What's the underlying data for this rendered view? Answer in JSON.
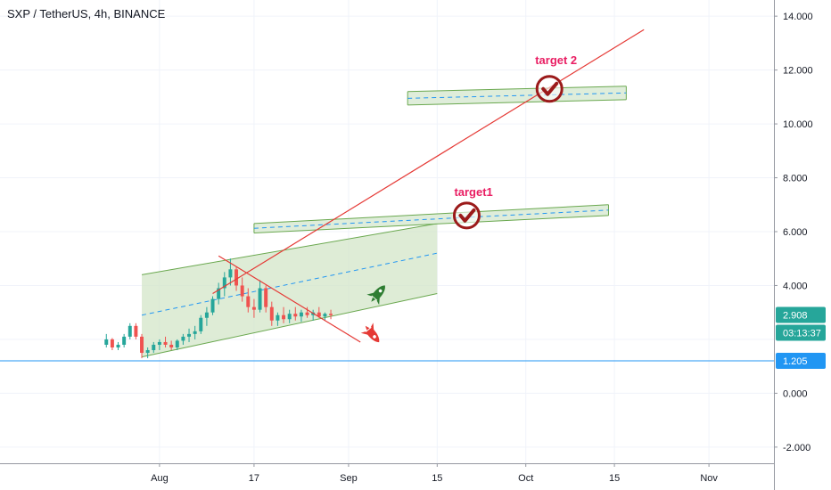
{
  "chart_data": {
    "type": "candlestick",
    "title": "SXP / TetherUS, 4h, BINANCE",
    "price_axis": {
      "ticks": [
        "14.000",
        "12.000",
        "10.000",
        "8.000",
        "6.000",
        "4.000",
        "2.000",
        "0.000",
        "-2.000"
      ],
      "tick_values": [
        14,
        12,
        10,
        8,
        6,
        4,
        2,
        0,
        -2
      ],
      "visible_ticks": [
        "14.000",
        "12.000",
        "10.000",
        "8.000",
        "6.000",
        "4.000",
        "0.000",
        "-2.000"
      ],
      "range": [
        -2.6,
        14.6
      ]
    },
    "time_axis": {
      "labels": [
        "Aug",
        "17",
        "Sep",
        "15",
        "Oct",
        "15",
        "Nov"
      ],
      "label_days": [
        31,
        47,
        63,
        78,
        93,
        108,
        124
      ],
      "range_days": [
        4,
        135
      ]
    },
    "current_price": {
      "value": 2.908,
      "label": "2.908",
      "color": "#26a69a"
    },
    "countdown": {
      "label": "03:13:37",
      "color": "#26a69a"
    },
    "horizontal_level": {
      "value": 1.205,
      "label": "1.205",
      "color": "#2196f3"
    },
    "candles_ohlc_by_day": [
      [
        22,
        1.8,
        2.2,
        1.7,
        2.0
      ],
      [
        23,
        2.0,
        2.05,
        1.6,
        1.7
      ],
      [
        24,
        1.7,
        1.9,
        1.6,
        1.8
      ],
      [
        25,
        1.8,
        2.2,
        1.7,
        2.1
      ],
      [
        26,
        2.1,
        2.6,
        2.0,
        2.5
      ],
      [
        27,
        2.5,
        2.6,
        2.0,
        2.1
      ],
      [
        28,
        2.1,
        2.2,
        1.3,
        1.5
      ],
      [
        29,
        1.5,
        1.7,
        1.3,
        1.6
      ],
      [
        30,
        1.6,
        1.9,
        1.5,
        1.8
      ],
      [
        31,
        1.8,
        2.0,
        1.6,
        1.9
      ],
      [
        32,
        1.9,
        2.1,
        1.7,
        1.8
      ],
      [
        33,
        1.8,
        1.95,
        1.6,
        1.7
      ],
      [
        34,
        1.7,
        2.0,
        1.6,
        1.95
      ],
      [
        35,
        1.95,
        2.2,
        1.8,
        2.1
      ],
      [
        36,
        2.1,
        2.4,
        1.9,
        2.2
      ],
      [
        37,
        2.2,
        2.5,
        2.0,
        2.3
      ],
      [
        38,
        2.3,
        2.9,
        2.2,
        2.8
      ],
      [
        39,
        2.8,
        3.2,
        2.5,
        3.0
      ],
      [
        40,
        3.0,
        3.6,
        2.9,
        3.5
      ],
      [
        41,
        3.5,
        4.1,
        3.3,
        3.9
      ],
      [
        42,
        3.9,
        4.5,
        3.6,
        4.3
      ],
      [
        43,
        4.3,
        5.0,
        4.0,
        4.6
      ],
      [
        44,
        4.6,
        4.7,
        3.8,
        4.0
      ],
      [
        45,
        4.0,
        4.3,
        3.4,
        3.6
      ],
      [
        46,
        3.6,
        3.9,
        3.0,
        3.2
      ],
      [
        47,
        3.2,
        3.5,
        2.8,
        3.1
      ],
      [
        48,
        3.1,
        4.2,
        3.0,
        3.9
      ],
      [
        49,
        3.9,
        4.0,
        3.0,
        3.2
      ],
      [
        50,
        3.2,
        3.4,
        2.5,
        2.7
      ],
      [
        51,
        2.7,
        3.0,
        2.5,
        2.9
      ],
      [
        52,
        2.9,
        3.2,
        2.6,
        2.75
      ],
      [
        53,
        2.75,
        3.1,
        2.6,
        2.95
      ],
      [
        54,
        2.95,
        3.2,
        2.7,
        2.85
      ],
      [
        55,
        2.85,
        3.1,
        2.65,
        3.0
      ],
      [
        56,
        3.0,
        3.2,
        2.8,
        2.9
      ],
      [
        57,
        2.9,
        3.1,
        2.7,
        3.0
      ],
      [
        58,
        3.0,
        3.2,
        2.8,
        2.85
      ],
      [
        59,
        2.85,
        3.0,
        2.7,
        2.95
      ],
      [
        60,
        2.95,
        3.1,
        2.75,
        2.9
      ]
    ],
    "annotations": [
      {
        "text": "target1",
        "color": "#e91e63"
      },
      {
        "text": "target 2",
        "color": "#e91e63"
      }
    ],
    "drawings": {
      "channel": {
        "fill": "#d3e6c8",
        "stroke": "#6aa84f",
        "upper": [
          [
            28,
            4.4
          ],
          [
            78,
            6.3
          ]
        ],
        "lower": [
          [
            28,
            1.35
          ],
          [
            78,
            3.7
          ]
        ],
        "mid": [
          [
            28,
            2.9
          ],
          [
            78,
            5.2
          ]
        ]
      },
      "zone_target1": {
        "upper": [
          [
            47,
            6.3
          ],
          [
            107,
            7.0
          ]
        ],
        "lower": [
          [
            47,
            5.95
          ],
          [
            107,
            6.6
          ]
        ]
      },
      "zone_target2": {
        "upper": [
          [
            73,
            11.2
          ],
          [
            110,
            11.4
          ]
        ],
        "lower": [
          [
            73,
            10.7
          ],
          [
            110,
            10.9
          ]
        ]
      },
      "trend_up": {
        "color": "#e53935",
        "points": [
          [
            40,
            3.7
          ],
          [
            113,
            13.5
          ]
        ]
      },
      "trend_down": {
        "color": "#e53935",
        "points": [
          [
            41,
            5.1
          ],
          [
            65,
            1.9
          ]
        ]
      },
      "target1_marker": [
        83,
        6.6
      ],
      "target2_marker": [
        97,
        11.3
      ],
      "rocket_up": [
        68,
        3.7
      ],
      "rocket_down": [
        67,
        2.2
      ]
    }
  }
}
